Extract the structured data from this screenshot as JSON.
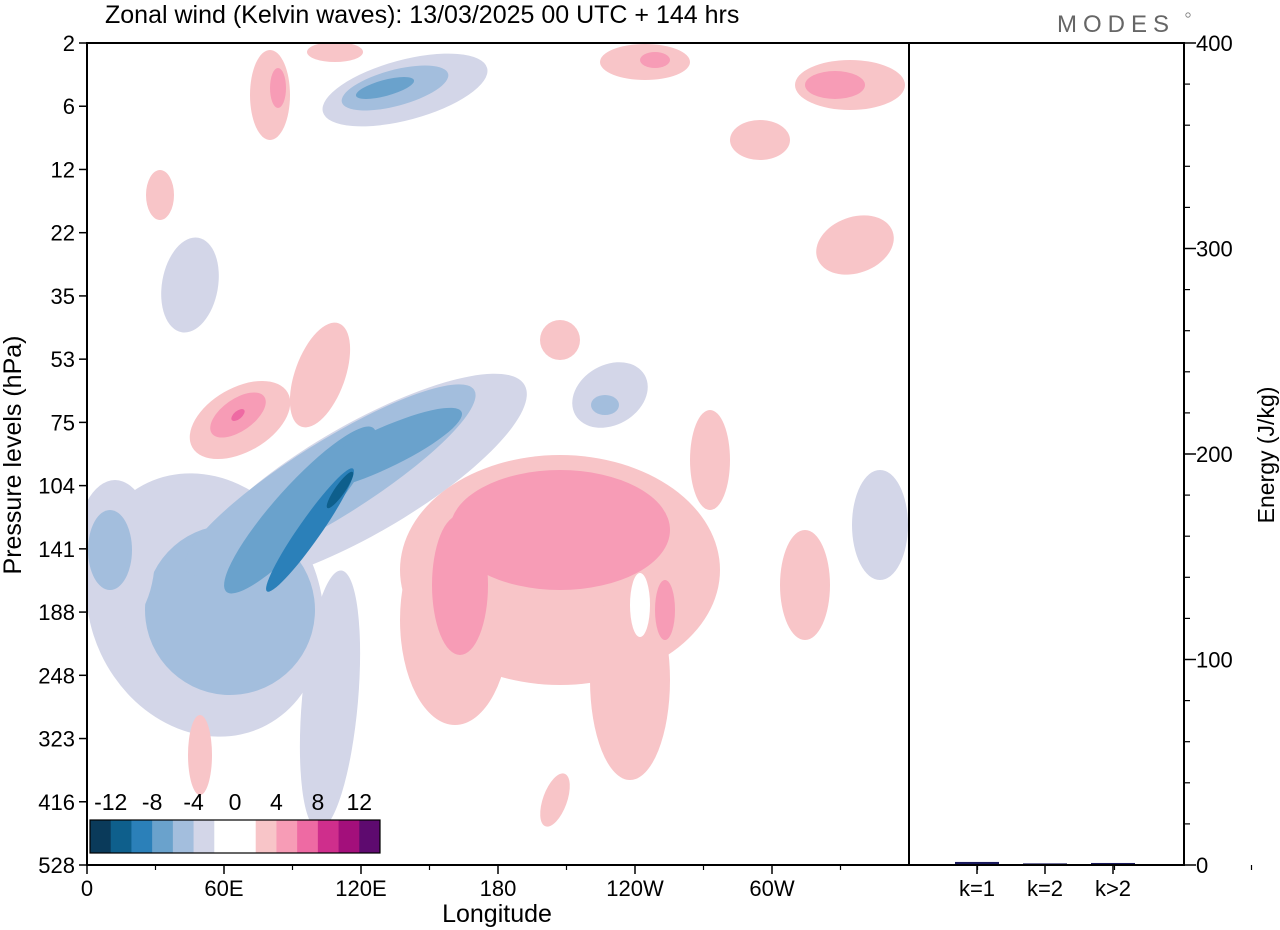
{
  "header": {
    "title": "Zonal wind (Kelvin waves):  13/03/2025  00 UTC  + 144 hrs",
    "brand": "MODES"
  },
  "chart_data": [
    {
      "type": "heatmap",
      "title": "Zonal wind (Kelvin waves):  13/03/2025  00 UTC  + 144 hrs",
      "xlabel": "Longitude",
      "ylabel": "Pressure levels (hPa)",
      "x_ticks": [
        "0",
        "60E",
        "120E",
        "180",
        "120W",
        "60W"
      ],
      "y_ticks": [
        "2",
        "6",
        "12",
        "22",
        "35",
        "53",
        "75",
        "104",
        "141",
        "188",
        "248",
        "323",
        "416",
        "528"
      ],
      "colorbar": {
        "labels": [
          "-12",
          "-8",
          "-4",
          "0",
          "4",
          "8",
          "12"
        ],
        "colors": [
          "#0a3a5a",
          "#0e5f8c",
          "#2b80b9",
          "#6aa2cc",
          "#a3bedd",
          "#d3d6e8",
          "#ffffff",
          "#ffffff",
          "#f8c5c8",
          "#f79cb6",
          "#ee6aa3",
          "#cf2e8c",
          "#a30f7b",
          "#5e0a6f"
        ]
      },
      "regions": [
        {
          "sign": "neg",
          "level": 1,
          "cx": 205,
          "cy": 605,
          "rx": 115,
          "ry": 135,
          "rot": -25
        },
        {
          "sign": "neg",
          "level": 1,
          "cx": 330,
          "cy": 700,
          "rx": 28,
          "ry": 130,
          "rot": 5
        },
        {
          "sign": "neg",
          "level": 1,
          "cx": 360,
          "cy": 480,
          "rx": 190,
          "ry": 55,
          "rot": -30
        },
        {
          "sign": "neg",
          "level": 2,
          "cx": 230,
          "cy": 610,
          "rx": 85,
          "ry": 85,
          "rot": -30
        },
        {
          "sign": "neg",
          "level": 2,
          "cx": 330,
          "cy": 480,
          "rx": 170,
          "ry": 38,
          "rot": -32
        },
        {
          "sign": "neg",
          "level": 3,
          "cx": 300,
          "cy": 510,
          "rx": 110,
          "ry": 25,
          "rot": -48
        },
        {
          "sign": "neg",
          "level": 3,
          "cx": 380,
          "cy": 450,
          "rx": 90,
          "ry": 20,
          "rot": -25
        },
        {
          "sign": "neg",
          "level": 4,
          "cx": 310,
          "cy": 530,
          "rx": 75,
          "ry": 11,
          "rot": -55
        },
        {
          "sign": "neg",
          "level": 5,
          "cx": 340,
          "cy": 490,
          "rx": 22,
          "ry": 5,
          "rot": -55
        },
        {
          "sign": "neg",
          "level": 1,
          "cx": 115,
          "cy": 555,
          "rx": 40,
          "ry": 75,
          "rot": 0
        },
        {
          "sign": "neg",
          "level": 2,
          "cx": 110,
          "cy": 550,
          "rx": 22,
          "ry": 40,
          "rot": 0
        },
        {
          "sign": "neg",
          "level": 1,
          "cx": 405,
          "cy": 90,
          "rx": 85,
          "ry": 30,
          "rot": -15
        },
        {
          "sign": "neg",
          "level": 2,
          "cx": 395,
          "cy": 88,
          "rx": 55,
          "ry": 18,
          "rot": -15
        },
        {
          "sign": "neg",
          "level": 3,
          "cx": 385,
          "cy": 88,
          "rx": 30,
          "ry": 8,
          "rot": -15
        },
        {
          "sign": "neg",
          "level": 1,
          "cx": 190,
          "cy": 285,
          "rx": 28,
          "ry": 48,
          "rot": 10
        },
        {
          "sign": "neg",
          "level": 1,
          "cx": 610,
          "cy": 395,
          "rx": 40,
          "ry": 30,
          "rot": -30
        },
        {
          "sign": "neg",
          "level": 2,
          "cx": 605,
          "cy": 405,
          "rx": 14,
          "ry": 10,
          "rot": 0
        },
        {
          "sign": "neg",
          "level": 1,
          "cx": 880,
          "cy": 525,
          "rx": 28,
          "ry": 55,
          "rot": 0
        },
        {
          "sign": "pos",
          "level": 1,
          "cx": 560,
          "cy": 570,
          "rx": 160,
          "ry": 115,
          "rot": 0
        },
        {
          "sign": "pos",
          "level": 1,
          "cx": 455,
          "cy": 620,
          "rx": 55,
          "ry": 105,
          "rot": 0
        },
        {
          "sign": "pos",
          "level": 1,
          "cx": 630,
          "cy": 680,
          "rx": 40,
          "ry": 100,
          "rot": 0
        },
        {
          "sign": "pos",
          "level": 2,
          "cx": 560,
          "cy": 530,
          "rx": 110,
          "ry": 60,
          "rot": 0
        },
        {
          "sign": "pos",
          "level": 2,
          "cx": 460,
          "cy": 585,
          "rx": 28,
          "ry": 70,
          "rot": 0
        },
        {
          "sign": "pos",
          "level": 2,
          "cx": 665,
          "cy": 610,
          "rx": 10,
          "ry": 30,
          "rot": 0
        },
        {
          "sign": "pos",
          "level": 1,
          "cx": 240,
          "cy": 420,
          "rx": 55,
          "ry": 32,
          "rot": -30
        },
        {
          "sign": "pos",
          "level": 1,
          "cx": 320,
          "cy": 375,
          "rx": 25,
          "ry": 55,
          "rot": 20
        },
        {
          "sign": "pos",
          "level": 2,
          "cx": 238,
          "cy": 415,
          "rx": 32,
          "ry": 16,
          "rot": -35
        },
        {
          "sign": "pos",
          "level": 3,
          "cx": 238,
          "cy": 415,
          "rx": 8,
          "ry": 4,
          "rot": -40
        },
        {
          "sign": "pos",
          "level": 1,
          "cx": 270,
          "cy": 95,
          "rx": 20,
          "ry": 45,
          "rot": 0
        },
        {
          "sign": "pos",
          "level": 2,
          "cx": 278,
          "cy": 88,
          "rx": 8,
          "ry": 20,
          "rot": 0
        },
        {
          "sign": "pos",
          "level": 1,
          "cx": 335,
          "cy": 52,
          "rx": 28,
          "ry": 10,
          "rot": 0
        },
        {
          "sign": "pos",
          "level": 1,
          "cx": 160,
          "cy": 195,
          "rx": 14,
          "ry": 25,
          "rot": 0
        },
        {
          "sign": "pos",
          "level": 1,
          "cx": 645,
          "cy": 62,
          "rx": 45,
          "ry": 18,
          "rot": 0
        },
        {
          "sign": "pos",
          "level": 2,
          "cx": 655,
          "cy": 60,
          "rx": 15,
          "ry": 8,
          "rot": 0
        },
        {
          "sign": "pos",
          "level": 1,
          "cx": 850,
          "cy": 85,
          "rx": 55,
          "ry": 25,
          "rot": 0
        },
        {
          "sign": "pos",
          "level": 2,
          "cx": 835,
          "cy": 85,
          "rx": 30,
          "ry": 14,
          "rot": 0
        },
        {
          "sign": "pos",
          "level": 1,
          "cx": 760,
          "cy": 140,
          "rx": 30,
          "ry": 20,
          "rot": 0
        },
        {
          "sign": "pos",
          "level": 1,
          "cx": 855,
          "cy": 245,
          "rx": 40,
          "ry": 28,
          "rot": -20
        },
        {
          "sign": "pos",
          "level": 1,
          "cx": 805,
          "cy": 585,
          "rx": 25,
          "ry": 55,
          "rot": 0
        },
        {
          "sign": "pos",
          "level": 1,
          "cx": 200,
          "cy": 755,
          "rx": 12,
          "ry": 40,
          "rot": 0
        },
        {
          "sign": "pos",
          "level": 1,
          "cx": 555,
          "cy": 800,
          "rx": 12,
          "ry": 28,
          "rot": 20
        },
        {
          "sign": "pos",
          "level": 1,
          "cx": 560,
          "cy": 340,
          "rx": 20,
          "ry": 20,
          "rot": 0
        },
        {
          "sign": "pos",
          "level": 1,
          "cx": 710,
          "cy": 460,
          "rx": 20,
          "ry": 50,
          "rot": 0
        }
      ],
      "holes": [
        {
          "cx": 640,
          "cy": 605,
          "rx": 10,
          "ry": 32
        }
      ]
    },
    {
      "type": "bar",
      "categories": [
        "k=1",
        "k=2",
        "k>2"
      ],
      "values": [
        1,
        0.3,
        0.5
      ],
      "ylabel": "Energy (J/kg)",
      "ylim": [
        0,
        400
      ],
      "y_ticks": [
        "0",
        "100",
        "200",
        "300",
        "400"
      ],
      "bar_color": "#1a1a5e"
    }
  ]
}
